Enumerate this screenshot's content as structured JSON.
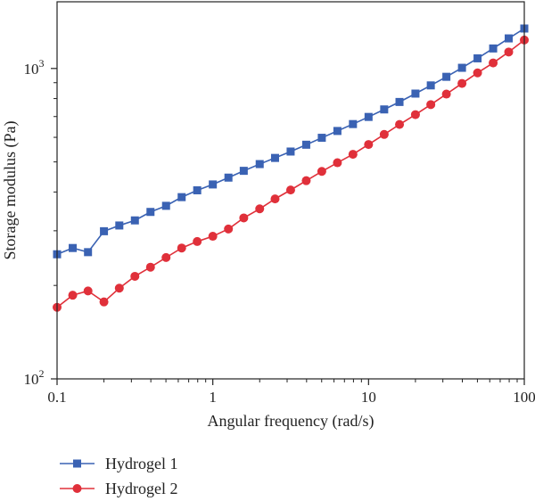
{
  "chart_data": {
    "type": "line",
    "title": "",
    "xlabel": "Angular frequency (rad/s)",
    "ylabel": "Storage modulus (Pa)",
    "x_scale": "log",
    "y_scale": "log",
    "xlim": [
      0.1,
      100
    ],
    "ylim": [
      100,
      1640
    ],
    "x_ticks": [
      {
        "value": 0.1,
        "label": "0.1"
      },
      {
        "value": 1,
        "label": "1"
      },
      {
        "value": 10,
        "label": "10"
      },
      {
        "value": 100,
        "label": "100"
      }
    ],
    "y_ticks": [
      {
        "value": 100,
        "base": "10",
        "exp": "2"
      },
      {
        "value": 1000,
        "base": "10",
        "exp": "3"
      }
    ],
    "grid": false,
    "legend_position": "bottom-left",
    "x": [
      0.1,
      0.126,
      0.158,
      0.2,
      0.251,
      0.316,
      0.398,
      0.501,
      0.631,
      0.794,
      1,
      1.26,
      1.58,
      2,
      2.51,
      3.16,
      3.98,
      5.01,
      6.31,
      7.94,
      10,
      12.6,
      15.8,
      20,
      25.1,
      31.6,
      39.8,
      50.1,
      63.1,
      79.4,
      100
    ],
    "series": [
      {
        "name": "Hydrogel 1",
        "color": "#3a62b3",
        "marker": "square",
        "values": [
          252,
          264,
          256,
          299,
          312,
          324,
          345,
          361,
          385,
          405,
          423,
          445,
          468,
          492,
          515,
          540,
          568,
          598,
          629,
          662,
          698,
          738,
          780,
          830,
          882,
          940,
          1005,
          1078,
          1160,
          1250,
          1345
        ]
      },
      {
        "name": "Hydrogel 2",
        "color": "#e0303a",
        "marker": "circle",
        "values": [
          170,
          186,
          192,
          177,
          196,
          214,
          229,
          246,
          264,
          277,
          288,
          304,
          330,
          353,
          380,
          406,
          435,
          466,
          497,
          529,
          569,
          613,
          660,
          710,
          765,
          827,
          895,
          968,
          1042,
          1130,
          1235
        ]
      }
    ]
  }
}
